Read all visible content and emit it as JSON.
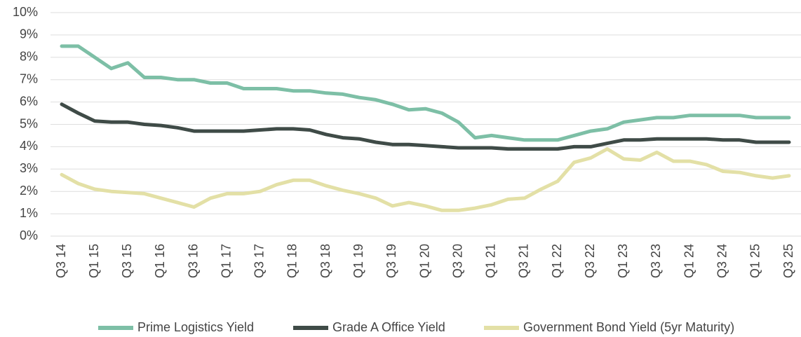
{
  "chart_data": {
    "type": "line",
    "categories": [
      "Q3 14",
      null,
      "Q1 15",
      null,
      "Q3 15",
      null,
      "Q1 16",
      null,
      "Q3 16",
      null,
      "Q1 17",
      null,
      "Q3 17",
      null,
      "Q1 18",
      null,
      "Q3 18",
      null,
      "Q1 19",
      null,
      "Q3 19",
      null,
      "Q1 20",
      null,
      "Q3 20",
      null,
      "Q1 21",
      null,
      "Q3 21",
      null,
      "Q1 22",
      null,
      "Q3 22",
      null,
      "Q1 23",
      null,
      "Q3 23",
      null,
      "Q1 24",
      null,
      "Q3 24",
      null,
      "Q1 25",
      null,
      "Q3 25"
    ],
    "series": [
      {
        "name": "Prime Logistics Yield",
        "color": "#7dbfa6",
        "values": [
          8.5,
          8.5,
          8.0,
          7.5,
          7.75,
          7.1,
          7.1,
          7.0,
          7.0,
          6.85,
          6.85,
          6.6,
          6.6,
          6.6,
          6.5,
          6.5,
          6.4,
          6.35,
          6.2,
          6.1,
          5.9,
          5.65,
          5.7,
          5.5,
          5.1,
          4.4,
          4.5,
          4.4,
          4.3,
          4.3,
          4.3,
          4.5,
          4.7,
          4.8,
          5.1,
          5.2,
          5.3,
          5.3,
          5.4,
          5.4,
          5.4,
          5.4,
          5.3,
          5.3,
          5.3
        ]
      },
      {
        "name": "Grade A Office Yield",
        "color": "#3f4b47",
        "values": [
          5.9,
          5.5,
          5.15,
          5.1,
          5.1,
          5.0,
          4.95,
          4.85,
          4.7,
          4.7,
          4.7,
          4.7,
          4.75,
          4.8,
          4.8,
          4.75,
          4.55,
          4.4,
          4.35,
          4.2,
          4.1,
          4.1,
          4.05,
          4.0,
          3.95,
          3.95,
          3.95,
          3.9,
          3.9,
          3.9,
          3.9,
          4.0,
          4.0,
          4.15,
          4.3,
          4.3,
          4.35,
          4.35,
          4.35,
          4.35,
          4.3,
          4.3,
          4.2,
          4.2,
          4.2
        ]
      },
      {
        "name": "Government Bond Yield (5yr Maturity)",
        "color": "#e3e0a6",
        "values": [
          2.75,
          2.35,
          2.1,
          2.0,
          1.95,
          1.9,
          1.7,
          1.5,
          1.3,
          1.7,
          1.9,
          1.9,
          2.0,
          2.3,
          2.5,
          2.5,
          2.25,
          2.05,
          1.9,
          1.7,
          1.35,
          1.5,
          1.35,
          1.15,
          1.15,
          1.25,
          1.4,
          1.65,
          1.7,
          2.1,
          2.45,
          3.3,
          3.5,
          3.9,
          3.45,
          3.4,
          3.75,
          3.35,
          3.35,
          3.2,
          2.9,
          2.85,
          2.7,
          2.6,
          2.7
        ]
      }
    ],
    "ylim": [
      0,
      10
    ],
    "yticks": [
      {
        "value": 0,
        "label": "0%"
      },
      {
        "value": 1,
        "label": "1%"
      },
      {
        "value": 2,
        "label": "2%"
      },
      {
        "value": 3,
        "label": "3%"
      },
      {
        "value": 4,
        "label": "4%"
      },
      {
        "value": 5,
        "label": "5%"
      },
      {
        "value": 6,
        "label": "6%"
      },
      {
        "value": 7,
        "label": "7%"
      },
      {
        "value": 8,
        "label": "8%"
      },
      {
        "value": 9,
        "label": "9%"
      },
      {
        "value": 10,
        "label": "10%"
      }
    ],
    "grid": true,
    "legend": "bottom"
  }
}
